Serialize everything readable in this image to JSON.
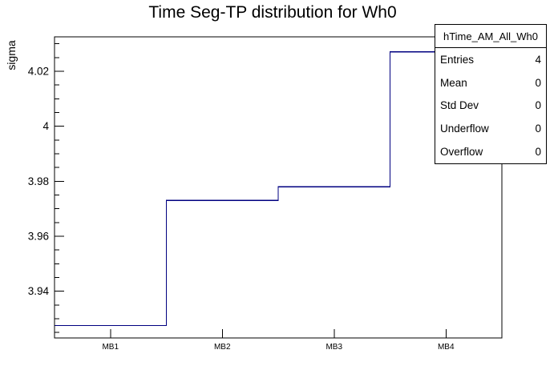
{
  "chart_data": {
    "type": "bar",
    "subtype": "step-histogram-outline",
    "title": "Time Seg-TP distribution for Wh0",
    "xlabel": "",
    "ylabel": "sigma",
    "categories": [
      "MB1",
      "MB2",
      "MB3",
      "MB4"
    ],
    "values": [
      3.9275,
      3.973,
      3.978,
      4.027
    ],
    "ylim": [
      3.923,
      4.0325
    ],
    "y_major_ticks": [
      {
        "value": 3.94,
        "label": "3.94"
      },
      {
        "value": 3.96,
        "label": "3.96"
      },
      {
        "value": 3.98,
        "label": "3.98"
      },
      {
        "value": 4.0,
        "label": "4"
      },
      {
        "value": 4.02,
        "label": "4.02"
      }
    ],
    "y_minor_step": 0.005,
    "y_major_step": 0.02,
    "grid": false,
    "legend_position": "none",
    "line_color": "#000080",
    "frame_color": "#000000",
    "background_color": "#ffffff"
  },
  "stats_box": {
    "title": "hTime_AM_All_Wh0",
    "rows": [
      {
        "label": "Entries",
        "value": "4"
      },
      {
        "label": "Mean",
        "value": "0"
      },
      {
        "label": "Std Dev",
        "value": "0"
      },
      {
        "label": "Underflow",
        "value": "0"
      },
      {
        "label": "Overflow",
        "value": "0"
      }
    ]
  }
}
